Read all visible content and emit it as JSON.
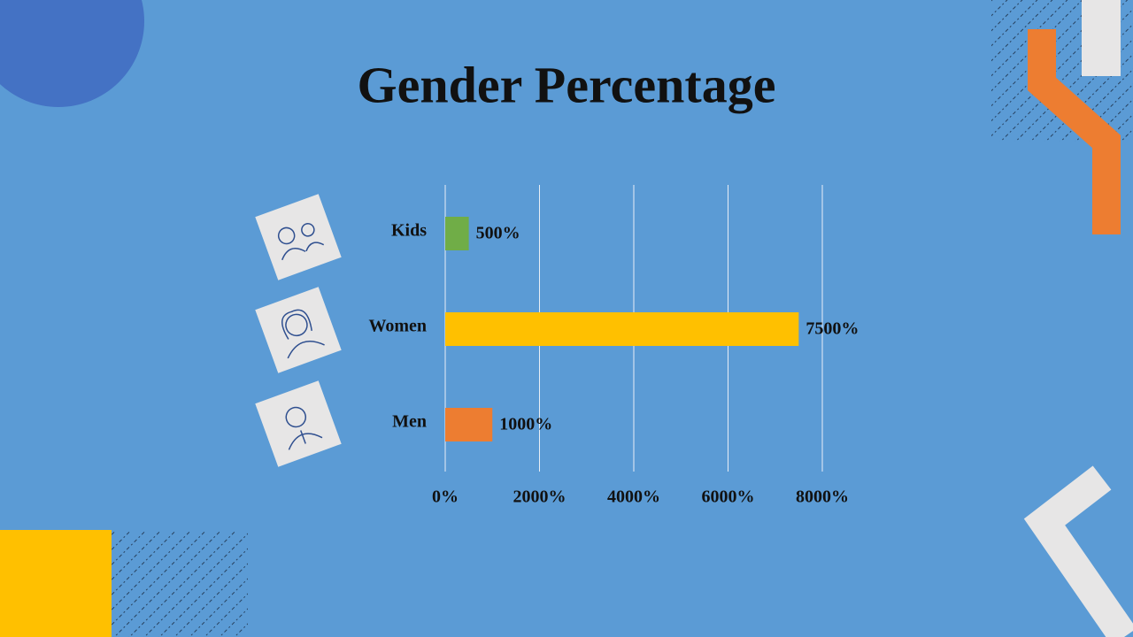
{
  "chart_data": {
    "type": "bar",
    "orientation": "horizontal",
    "title": "Gender Percentage",
    "categories": [
      "Kids",
      "Women",
      "Men"
    ],
    "values": [
      500,
      7500,
      1000
    ],
    "value_labels": [
      "500%",
      "7500%",
      "1000%"
    ],
    "colors": [
      "#70ad47",
      "#ffc000",
      "#ed7d31"
    ],
    "xlim": [
      0,
      8000
    ],
    "xticks": [
      {
        "value": 0,
        "label": "0%"
      },
      {
        "value": 2000,
        "label": "2000%"
      },
      {
        "value": 4000,
        "label": "4000%"
      },
      {
        "value": 6000,
        "label": "6000%"
      },
      {
        "value": 8000,
        "label": "8000%"
      }
    ],
    "grid": true
  }
}
